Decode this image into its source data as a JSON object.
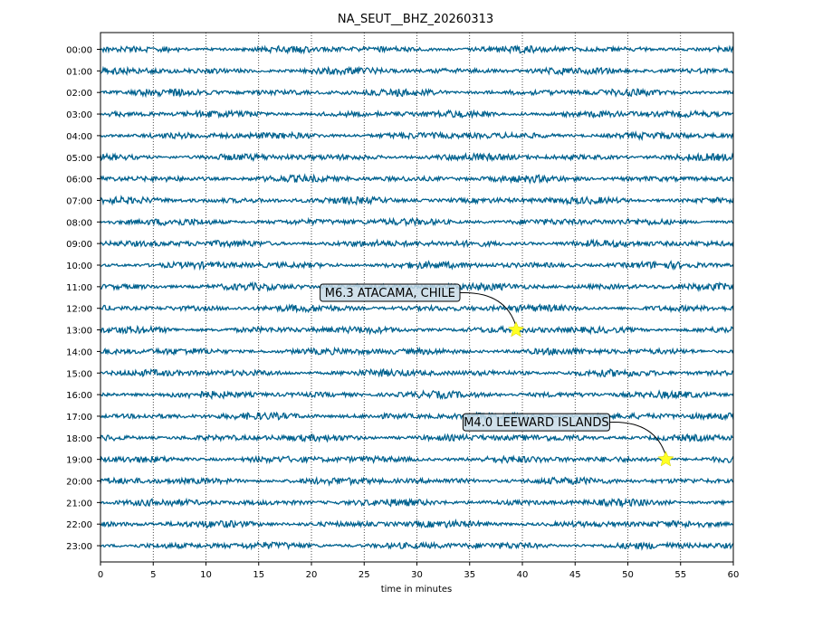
{
  "chart_data": {
    "type": "line",
    "title": "NA_SEUT__BHZ_20260313",
    "xlabel": "time in minutes",
    "ylabel": "",
    "xlim": [
      0,
      60
    ],
    "x_ticks": [
      0,
      5,
      10,
      15,
      20,
      25,
      30,
      35,
      40,
      45,
      50,
      55,
      60
    ],
    "rows": [
      "00:00",
      "01:00",
      "02:00",
      "03:00",
      "04:00",
      "05:00",
      "06:00",
      "07:00",
      "08:00",
      "09:00",
      "10:00",
      "11:00",
      "12:00",
      "13:00",
      "14:00",
      "15:00",
      "16:00",
      "17:00",
      "18:00",
      "19:00",
      "20:00",
      "21:00",
      "22:00",
      "23:00"
    ],
    "grid": "vertical dotted",
    "trace_color": "#00628f",
    "events": [
      {
        "label": "M6.3 ATACAMA, CHILE",
        "row": "13:00",
        "minute": 39.4
      },
      {
        "label": "M4.0 LEEWARD ISLANDS",
        "row": "19:00",
        "minute": 53.6
      }
    ],
    "marker_color": "#ffff22"
  }
}
